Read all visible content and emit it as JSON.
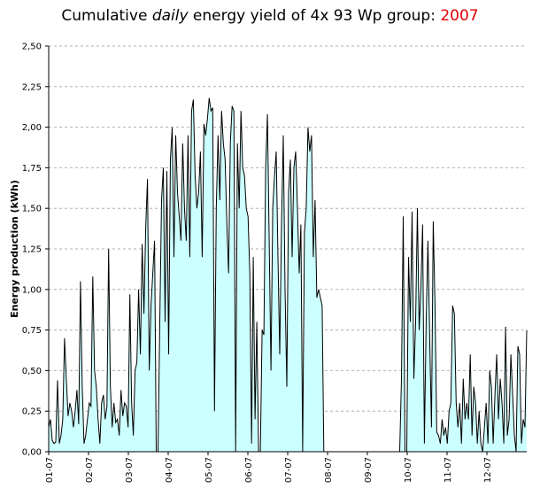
{
  "title": {
    "prefix": "Cumulative ",
    "emphasis": "daily",
    "middle": "  energy yield of 4x 93 Wp group: ",
    "year": "2007",
    "year_color": "#e00000"
  },
  "chart_data": {
    "type": "area",
    "title": "Cumulative daily energy yield of 4x 93 Wp group: 2007",
    "ylabel": "Energy production (kWh)",
    "xlabel": "",
    "ylim": [
      0,
      2.5
    ],
    "yticks": [
      "0,00",
      "0,25",
      "0,50",
      "0,75",
      "1,00",
      "1,25",
      "1,50",
      "1,75",
      "2,00",
      "2,25",
      "2,50"
    ],
    "xticks": [
      "01-07",
      "02-07",
      "03-07",
      "04-07",
      "05-07",
      "06-07",
      "07-07",
      "08-07",
      "09-07",
      "10-07",
      "11-07",
      "12-07"
    ],
    "fill_color": "#ccffff",
    "line_color": "#000000",
    "grid": "horizontal dashed",
    "series_points": [
      [
        0,
        0.15
      ],
      [
        2,
        0.2
      ],
      [
        4,
        0.07
      ],
      [
        6,
        0.05
      ],
      [
        8,
        0.06
      ],
      [
        10,
        0.44
      ],
      [
        12,
        0.05
      ],
      [
        14,
        0.1
      ],
      [
        16,
        0.2
      ],
      [
        18,
        0.7
      ],
      [
        20,
        0.45
      ],
      [
        22,
        0.22
      ],
      [
        24,
        0.3
      ],
      [
        26,
        0.25
      ],
      [
        28,
        0.15
      ],
      [
        30,
        0.25
      ],
      [
        32,
        0.38
      ],
      [
        34,
        0.17
      ],
      [
        36,
        1.05
      ],
      [
        38,
        0.4
      ],
      [
        40,
        0.05
      ],
      [
        42,
        0.1
      ],
      [
        44,
        0.2
      ],
      [
        46,
        0.3
      ],
      [
        48,
        0.28
      ],
      [
        50,
        1.08
      ],
      [
        52,
        0.5
      ],
      [
        54,
        0.4
      ],
      [
        56,
        0.2
      ],
      [
        58,
        0.05
      ],
      [
        60,
        0.3
      ],
      [
        62,
        0.35
      ],
      [
        64,
        0.2
      ],
      [
        66,
        0.28
      ],
      [
        68,
        1.25
      ],
      [
        70,
        0.4
      ],
      [
        72,
        0.15
      ],
      [
        74,
        0.3
      ],
      [
        76,
        0.18
      ],
      [
        78,
        0.2
      ],
      [
        80,
        0.1
      ],
      [
        82,
        0.38
      ],
      [
        84,
        0.22
      ],
      [
        86,
        0.3
      ],
      [
        88,
        0.28
      ],
      [
        90,
        0.15
      ],
      [
        92,
        0.97
      ],
      [
        94,
        0.3
      ],
      [
        96,
        0.1
      ],
      [
        98,
        0.5
      ],
      [
        100,
        0.55
      ],
      [
        102,
        1.0
      ],
      [
        104,
        0.6
      ],
      [
        106,
        1.28
      ],
      [
        108,
        0.85
      ],
      [
        110,
        1.38
      ],
      [
        112,
        1.68
      ],
      [
        114,
        0.5
      ],
      [
        116,
        0.9
      ],
      [
        118,
        1.1
      ],
      [
        120,
        1.3
      ],
      [
        122,
        0.0
      ],
      [
        124,
        0.0
      ],
      [
        126,
        0.8
      ],
      [
        128,
        1.55
      ],
      [
        130,
        1.75
      ],
      [
        132,
        0.8
      ],
      [
        134,
        1.73
      ],
      [
        136,
        0.6
      ],
      [
        138,
        1.8
      ],
      [
        140,
        2.0
      ],
      [
        142,
        1.2
      ],
      [
        144,
        1.95
      ],
      [
        146,
        1.6
      ],
      [
        148,
        1.45
      ],
      [
        150,
        1.3
      ],
      [
        152,
        1.9
      ],
      [
        154,
        1.5
      ],
      [
        156,
        1.3
      ],
      [
        158,
        1.95
      ],
      [
        160,
        1.2
      ],
      [
        162,
        2.1
      ],
      [
        164,
        2.17
      ],
      [
        166,
        1.7
      ],
      [
        168,
        1.5
      ],
      [
        170,
        1.6
      ],
      [
        172,
        1.85
      ],
      [
        174,
        1.2
      ],
      [
        176,
        2.02
      ],
      [
        178,
        1.95
      ],
      [
        180,
        2.05
      ],
      [
        182,
        2.18
      ],
      [
        184,
        2.1
      ],
      [
        186,
        2.12
      ],
      [
        188,
        0.25
      ],
      [
        190,
        1.5
      ],
      [
        192,
        1.95
      ],
      [
        194,
        1.55
      ],
      [
        196,
        2.1
      ],
      [
        198,
        1.9
      ],
      [
        200,
        1.8
      ],
      [
        202,
        1.4
      ],
      [
        204,
        1.1
      ],
      [
        206,
        1.9
      ],
      [
        208,
        2.13
      ],
      [
        210,
        2.1
      ],
      [
        212,
        0.0
      ],
      [
        214,
        1.9
      ],
      [
        216,
        1.5
      ],
      [
        218,
        2.1
      ],
      [
        220,
        1.75
      ],
      [
        222,
        1.7
      ],
      [
        224,
        1.5
      ],
      [
        226,
        1.45
      ],
      [
        228,
        1.1
      ],
      [
        230,
        0.05
      ],
      [
        232,
        1.2
      ],
      [
        234,
        0.2
      ],
      [
        236,
        0.8
      ],
      [
        238,
        0.0
      ],
      [
        240,
        0.0
      ],
      [
        242,
        0.75
      ],
      [
        244,
        0.72
      ],
      [
        246,
        1.75
      ],
      [
        248,
        2.08
      ],
      [
        250,
        1.3
      ],
      [
        252,
        0.5
      ],
      [
        254,
        1.5
      ],
      [
        256,
        1.7
      ],
      [
        258,
        1.85
      ],
      [
        260,
        1.2
      ],
      [
        262,
        0.6
      ],
      [
        264,
        1.4
      ],
      [
        266,
        1.95
      ],
      [
        268,
        1.0
      ],
      [
        270,
        0.4
      ],
      [
        272,
        1.6
      ],
      [
        274,
        1.8
      ],
      [
        276,
        1.2
      ],
      [
        278,
        1.75
      ],
      [
        280,
        1.85
      ],
      [
        282,
        1.5
      ],
      [
        284,
        1.1
      ],
      [
        286,
        1.4
      ],
      [
        288,
        0.0
      ],
      [
        290,
        1.35
      ],
      [
        292,
        1.5
      ],
      [
        294,
        2.0
      ],
      [
        296,
        1.85
      ],
      [
        298,
        1.95
      ],
      [
        300,
        1.2
      ],
      [
        302,
        1.55
      ],
      [
        304,
        0.95
      ],
      [
        306,
        1.0
      ],
      [
        308,
        0.95
      ],
      [
        310,
        0.9
      ],
      [
        312,
        0.0
      ],
      [
        314,
        0.0
      ],
      [
        316,
        0.0
      ],
      [
        318,
        0.0
      ],
      [
        320,
        0.0
      ],
      [
        322,
        0.0
      ],
      [
        324,
        0.0
      ],
      [
        326,
        0.0
      ],
      [
        328,
        0.0
      ],
      [
        330,
        0.0
      ],
      [
        332,
        0.0
      ],
      [
        334,
        0.0
      ],
      [
        336,
        0.0
      ],
      [
        338,
        0.0
      ],
      [
        340,
        0.0
      ],
      [
        342,
        0.0
      ],
      [
        344,
        0.0
      ],
      [
        346,
        0.0
      ],
      [
        348,
        0.0
      ],
      [
        350,
        0.0
      ],
      [
        352,
        0.0
      ],
      [
        354,
        0.0
      ],
      [
        356,
        0.0
      ],
      [
        358,
        0.0
      ],
      [
        360,
        0.0
      ],
      [
        362,
        0.0
      ],
      [
        364,
        0.0
      ],
      [
        366,
        0.0
      ],
      [
        368,
        0.0
      ],
      [
        370,
        0.0
      ],
      [
        372,
        0.0
      ],
      [
        374,
        0.0
      ],
      [
        376,
        0.0
      ],
      [
        378,
        0.0
      ],
      [
        380,
        0.0
      ],
      [
        382,
        0.0
      ],
      [
        384,
        0.0
      ],
      [
        386,
        0.0
      ],
      [
        388,
        0.0
      ],
      [
        390,
        0.0
      ],
      [
        392,
        0.0
      ],
      [
        394,
        0.0
      ],
      [
        396,
        0.0
      ],
      [
        398,
        0.0
      ],
      [
        400,
        0.45
      ],
      [
        402,
        1.45
      ],
      [
        404,
        0.0
      ],
      [
        406,
        0.0
      ],
      [
        408,
        1.2
      ],
      [
        410,
        0.8
      ],
      [
        412,
        1.48
      ],
      [
        414,
        0.45
      ],
      [
        416,
        0.8
      ],
      [
        418,
        1.5
      ],
      [
        420,
        0.75
      ],
      [
        422,
        1.0
      ],
      [
        424,
        1.4
      ],
      [
        426,
        0.05
      ],
      [
        428,
        0.8
      ],
      [
        430,
        1.3
      ],
      [
        432,
        0.7
      ],
      [
        434,
        0.15
      ],
      [
        436,
        1.42
      ],
      [
        438,
        0.9
      ],
      [
        440,
        0.12
      ],
      [
        442,
        0.1
      ],
      [
        444,
        0.05
      ],
      [
        446,
        0.2
      ],
      [
        448,
        0.1
      ],
      [
        450,
        0.15
      ],
      [
        452,
        0.05
      ],
      [
        454,
        0.25
      ],
      [
        456,
        0.3
      ],
      [
        458,
        0.9
      ],
      [
        460,
        0.85
      ],
      [
        462,
        0.3
      ],
      [
        464,
        0.15
      ],
      [
        466,
        0.3
      ],
      [
        468,
        0.05
      ],
      [
        470,
        0.45
      ],
      [
        472,
        0.2
      ],
      [
        474,
        0.3
      ],
      [
        476,
        0.2
      ],
      [
        478,
        0.6
      ],
      [
        480,
        0.1
      ],
      [
        482,
        0.4
      ],
      [
        484,
        0.3
      ],
      [
        486,
        0.05
      ],
      [
        488,
        0.25
      ],
      [
        490,
        0.05
      ],
      [
        492,
        0.0
      ],
      [
        494,
        0.15
      ],
      [
        496,
        0.3
      ],
      [
        498,
        0.05
      ],
      [
        500,
        0.5
      ],
      [
        502,
        0.4
      ],
      [
        504,
        0.05
      ],
      [
        506,
        0.35
      ],
      [
        508,
        0.6
      ],
      [
        510,
        0.2
      ],
      [
        512,
        0.45
      ],
      [
        514,
        0.3
      ],
      [
        516,
        0.05
      ],
      [
        518,
        0.77
      ],
      [
        520,
        0.1
      ],
      [
        522,
        0.2
      ],
      [
        524,
        0.6
      ],
      [
        526,
        0.35
      ],
      [
        528,
        0.1
      ],
      [
        530,
        0.0
      ],
      [
        532,
        0.65
      ],
      [
        534,
        0.6
      ],
      [
        536,
        0.05
      ],
      [
        538,
        0.2
      ],
      [
        540,
        0.15
      ],
      [
        542,
        0.75
      ]
    ],
    "x_note": "series_points x values are sequential sample indices across the year (Jan through Dec)"
  }
}
